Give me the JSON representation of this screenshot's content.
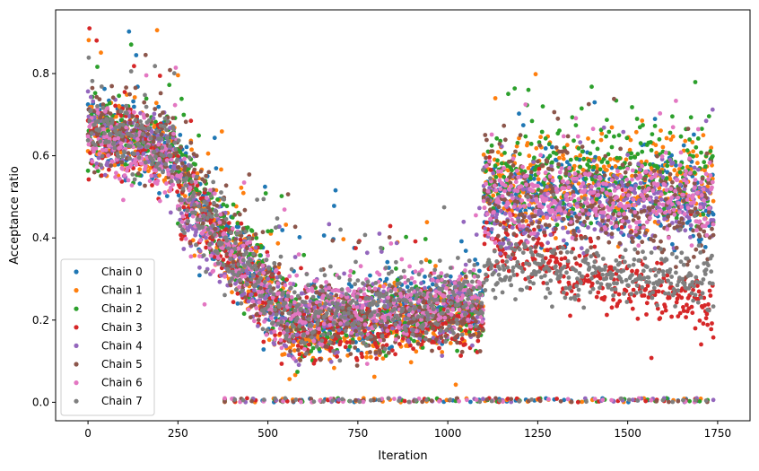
{
  "chart_data": {
    "type": "scatter",
    "title": "",
    "xlabel": "Iteration",
    "ylabel": "Acceptance ratio",
    "xlim": [
      -90,
      1840
    ],
    "ylim": [
      -0.045,
      0.955
    ],
    "x_ticks": [
      0,
      250,
      500,
      750,
      1000,
      1250,
      1500,
      1750
    ],
    "y_ticks": [
      0.0,
      0.2,
      0.4,
      0.6,
      0.8
    ],
    "x_tick_labels": [
      "0",
      "250",
      "500",
      "750",
      "1000",
      "1250",
      "1500",
      "1750"
    ],
    "y_tick_labels": [
      "0.0",
      "0.2",
      "0.4",
      "0.6",
      "0.8"
    ],
    "legend_position": "lower-left",
    "n_iterations": 1740,
    "series": [
      {
        "name": "Chain 0",
        "color": "#1f77b4",
        "phases": [
          {
            "x_start": 0,
            "x_end": 250,
            "y_start": 0.68,
            "y_end": 0.58,
            "spread": 0.08
          },
          {
            "x_start": 250,
            "x_end": 550,
            "y_start": 0.55,
            "y_end": 0.22,
            "spread": 0.1
          },
          {
            "x_start": 550,
            "x_end": 1100,
            "y_start": 0.2,
            "y_end": 0.24,
            "spread": 0.08
          },
          {
            "x_start": 1100,
            "x_end": 1740,
            "y_start": 0.5,
            "y_end": 0.5,
            "spread": 0.1
          }
        ]
      },
      {
        "name": "Chain 1",
        "color": "#ff7f0e",
        "phases": [
          {
            "x_start": 0,
            "x_end": 250,
            "y_start": 0.66,
            "y_end": 0.6,
            "spread": 0.08
          },
          {
            "x_start": 250,
            "x_end": 550,
            "y_start": 0.55,
            "y_end": 0.2,
            "spread": 0.1
          },
          {
            "x_start": 550,
            "x_end": 1100,
            "y_start": 0.17,
            "y_end": 0.22,
            "spread": 0.08
          },
          {
            "x_start": 1100,
            "x_end": 1740,
            "y_start": 0.52,
            "y_end": 0.55,
            "spread": 0.11
          }
        ]
      },
      {
        "name": "Chain 2",
        "color": "#2ca02c",
        "phases": [
          {
            "x_start": 0,
            "x_end": 250,
            "y_start": 0.67,
            "y_end": 0.62,
            "spread": 0.08
          },
          {
            "x_start": 250,
            "x_end": 550,
            "y_start": 0.56,
            "y_end": 0.24,
            "spread": 0.1
          },
          {
            "x_start": 550,
            "x_end": 1100,
            "y_start": 0.19,
            "y_end": 0.23,
            "spread": 0.08
          },
          {
            "x_start": 1100,
            "x_end": 1740,
            "y_start": 0.55,
            "y_end": 0.56,
            "spread": 0.11
          }
        ]
      },
      {
        "name": "Chain 3",
        "color": "#d62728",
        "phases": [
          {
            "x_start": 0,
            "x_end": 250,
            "y_start": 0.66,
            "y_end": 0.6,
            "spread": 0.08
          },
          {
            "x_start": 250,
            "x_end": 550,
            "y_start": 0.52,
            "y_end": 0.2,
            "spread": 0.1
          },
          {
            "x_start": 550,
            "x_end": 1100,
            "y_start": 0.18,
            "y_end": 0.2,
            "spread": 0.07
          },
          {
            "x_start": 1100,
            "x_end": 1740,
            "y_start": 0.4,
            "y_end": 0.22,
            "spread": 0.07
          }
        ]
      },
      {
        "name": "Chain 4",
        "color": "#9467bd",
        "phases": [
          {
            "x_start": 0,
            "x_end": 250,
            "y_start": 0.66,
            "y_end": 0.6,
            "spread": 0.08
          },
          {
            "x_start": 250,
            "x_end": 550,
            "y_start": 0.5,
            "y_end": 0.2,
            "spread": 0.1
          },
          {
            "x_start": 550,
            "x_end": 1100,
            "y_start": 0.2,
            "y_end": 0.24,
            "spread": 0.08
          },
          {
            "x_start": 1100,
            "x_end": 1740,
            "y_start": 0.45,
            "y_end": 0.5,
            "spread": 0.09
          }
        ]
      },
      {
        "name": "Chain 5",
        "color": "#8c564b",
        "phases": [
          {
            "x_start": 0,
            "x_end": 250,
            "y_start": 0.68,
            "y_end": 0.62,
            "spread": 0.08
          },
          {
            "x_start": 250,
            "x_end": 550,
            "y_start": 0.55,
            "y_end": 0.22,
            "spread": 0.1
          },
          {
            "x_start": 550,
            "x_end": 1100,
            "y_start": 0.2,
            "y_end": 0.22,
            "spread": 0.08
          },
          {
            "x_start": 1100,
            "x_end": 1740,
            "y_start": 0.52,
            "y_end": 0.45,
            "spread": 0.12
          }
        ]
      },
      {
        "name": "Chain 6",
        "color": "#e377c2",
        "phases": [
          {
            "x_start": 0,
            "x_end": 250,
            "y_start": 0.65,
            "y_end": 0.58,
            "spread": 0.08
          },
          {
            "x_start": 250,
            "x_end": 550,
            "y_start": 0.5,
            "y_end": 0.2,
            "spread": 0.1
          },
          {
            "x_start": 550,
            "x_end": 1100,
            "y_start": 0.22,
            "y_end": 0.26,
            "spread": 0.08
          },
          {
            "x_start": 1100,
            "x_end": 1740,
            "y_start": 0.5,
            "y_end": 0.5,
            "spread": 0.08
          }
        ]
      },
      {
        "name": "Chain 7",
        "color": "#7f7f7f",
        "phases": [
          {
            "x_start": 0,
            "x_end": 250,
            "y_start": 0.66,
            "y_end": 0.62,
            "spread": 0.08
          },
          {
            "x_start": 250,
            "x_end": 550,
            "y_start": 0.52,
            "y_end": 0.22,
            "spread": 0.1
          },
          {
            "x_start": 550,
            "x_end": 1100,
            "y_start": 0.2,
            "y_end": 0.26,
            "spread": 0.08
          },
          {
            "x_start": 1100,
            "x_end": 1740,
            "y_start": 0.33,
            "y_end": 0.3,
            "spread": 0.06
          }
        ]
      }
    ],
    "zero_band": {
      "x_start": 380,
      "x_end": 1740,
      "y": 0.0
    }
  }
}
